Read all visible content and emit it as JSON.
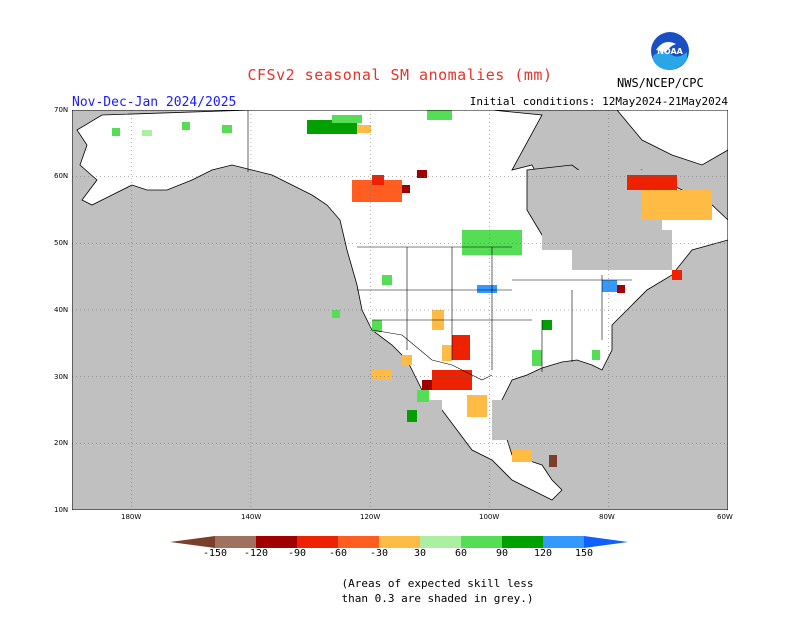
{
  "title": "CFSv2 seasonal SM anomalies (mm)",
  "season": "Nov-Dec-Jan 2024/2025",
  "initial_conditions": "Initial conditions: 12May2024-21May2024",
  "agency": "NWS/NCEP/CPC",
  "logo_text": "NOAA",
  "lat_labels": [
    "70N",
    "60N",
    "50N",
    "40N",
    "30N",
    "20N",
    "10N"
  ],
  "lon_labels": [
    "180W",
    "140W",
    "120W",
    "100W",
    "80W",
    "60W"
  ],
  "legend": {
    "labels": [
      "-150",
      "-120",
      "-90",
      "-60",
      "-30",
      "30",
      "60",
      "90",
      "120",
      "150"
    ],
    "colors": [
      "#7a3e2c",
      "#a0715f",
      "#a00000",
      "#ee2200",
      "#ff5e20",
      "#ffbb44",
      "#ffffff",
      "#aaf0a0",
      "#55dd55",
      "#00a000",
      "#3399ff",
      "#1060ff"
    ]
  },
  "note_line1": "(Areas of expected skill less",
  "note_line2": "than 0.3 are shaded in grey.)"
}
